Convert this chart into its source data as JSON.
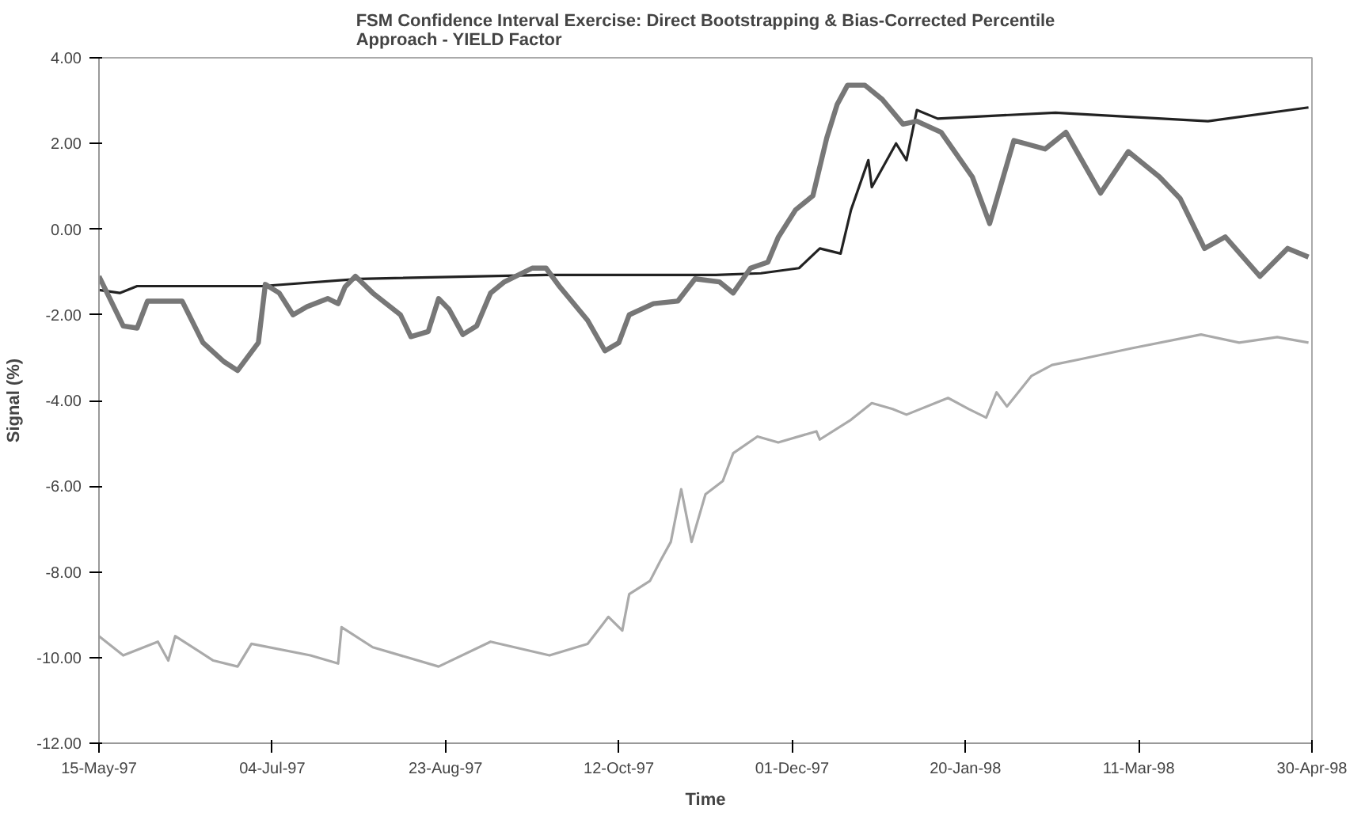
{
  "chart_data": {
    "type": "line",
    "title": "FSM Confidence Interval Exercise: Direct Bootstrapping & Bias-Corrected Percentile\nApproach - YIELD Factor",
    "xlabel": "Time",
    "ylabel": "Signal (%)",
    "xlim": [
      "1997-05-15",
      "1998-04-30"
    ],
    "xticks": [
      {
        "value": "1997-05-15",
        "label": "15-May-97"
      },
      {
        "value": "1997-07-04",
        "label": "04-Jul-97"
      },
      {
        "value": "1997-08-23",
        "label": "23-Aug-97"
      },
      {
        "value": "1997-10-12",
        "label": "12-Oct-97"
      },
      {
        "value": "1997-12-01",
        "label": "01-Dec-97"
      },
      {
        "value": "1998-01-20",
        "label": "20-Jan-98"
      },
      {
        "value": "1998-03-11",
        "label": "11-Mar-98"
      },
      {
        "value": "1998-04-30",
        "label": "30-Apr-98"
      }
    ],
    "ylim": [
      -12,
      4
    ],
    "yticks": [
      {
        "value": 4,
        "label": "4.00"
      },
      {
        "value": 2,
        "label": "2.00"
      },
      {
        "value": 0,
        "label": "0.00"
      },
      {
        "value": -2,
        "label": "-2.00"
      },
      {
        "value": -4,
        "label": "-4.00"
      },
      {
        "value": -6,
        "label": "-6.00"
      },
      {
        "value": -8,
        "label": "-8.00"
      },
      {
        "value": -10,
        "label": "-10.00"
      },
      {
        "value": -12,
        "label": "-12.00"
      }
    ],
    "grid": false,
    "series": [
      {
        "color": "#222222",
        "x": [
          "1997-05-15",
          "1997-05-21",
          "1997-05-26",
          "1997-07-01",
          "1997-07-29",
          "1997-09-21",
          "1997-11-09",
          "1997-11-22",
          "1997-12-03",
          "1997-12-09",
          "1997-12-15",
          "1997-12-18",
          "1997-12-23",
          "1997-12-24",
          "1997-12-31",
          "1998-01-03",
          "1998-01-06",
          "1998-01-12",
          "1998-02-15",
          "1998-03-31",
          "1998-04-29"
        ],
        "values": [
          -1.42,
          -1.49,
          -1.33,
          -1.33,
          -1.16,
          -1.07,
          -1.07,
          -1.03,
          -0.91,
          -0.45,
          -0.57,
          0.45,
          1.61,
          0.98,
          2.0,
          1.61,
          2.78,
          2.58,
          2.72,
          2.52,
          2.84
        ]
      },
      {
        "color": "#777777",
        "x": [
          "1997-05-15",
          "1997-05-22",
          "1997-05-26",
          "1997-05-29",
          "1997-06-08",
          "1997-06-14",
          "1997-06-20",
          "1997-06-24",
          "1997-06-30",
          "1997-07-02",
          "1997-07-06",
          "1997-07-10",
          "1997-07-14",
          "1997-07-20",
          "1997-07-23",
          "1997-07-25",
          "1997-07-28",
          "1997-08-02",
          "1997-08-10",
          "1997-08-13",
          "1997-08-18",
          "1997-08-21",
          "1997-08-24",
          "1997-08-28",
          "1997-09-01",
          "1997-09-05",
          "1997-09-09",
          "1997-09-17",
          "1997-09-21",
          "1997-09-25",
          "1997-10-03",
          "1997-10-08",
          "1997-10-12",
          "1997-10-15",
          "1997-10-22",
          "1997-10-29",
          "1997-11-03",
          "1997-11-10",
          "1997-11-14",
          "1997-11-19",
          "1997-11-24",
          "1997-11-27",
          "1997-12-02",
          "1997-12-07",
          "1997-12-11",
          "1997-12-14",
          "1997-12-17",
          "1997-12-22",
          "1997-12-27",
          "1998-01-02",
          "1998-01-06",
          "1998-01-13",
          "1998-01-22",
          "1998-01-27",
          "1998-02-03",
          "1998-02-12",
          "1998-02-18",
          "1998-02-28",
          "1998-03-08",
          "1998-03-17",
          "1998-03-23",
          "1998-03-30",
          "1998-04-05",
          "1998-04-15",
          "1998-04-23",
          "1998-04-29"
        ],
        "values": [
          -1.1,
          -2.26,
          -2.31,
          -1.68,
          -1.68,
          -2.65,
          -3.09,
          -3.3,
          -2.65,
          -1.29,
          -1.49,
          -2.0,
          -1.81,
          -1.62,
          -1.74,
          -1.35,
          -1.1,
          -1.49,
          -2.0,
          -2.51,
          -2.39,
          -1.62,
          -1.87,
          -2.46,
          -2.26,
          -1.49,
          -1.23,
          -0.91,
          -0.91,
          -1.35,
          -2.13,
          -2.84,
          -2.65,
          -2.0,
          -1.74,
          -1.68,
          -1.16,
          -1.23,
          -1.49,
          -0.91,
          -0.77,
          -0.19,
          0.45,
          0.78,
          2.13,
          2.91,
          3.36,
          3.36,
          3.03,
          2.45,
          2.52,
          2.26,
          1.22,
          0.13,
          2.07,
          1.87,
          2.26,
          0.84,
          1.81,
          1.22,
          0.71,
          -0.45,
          -0.18,
          -1.1,
          -0.45,
          -0.65
        ]
      },
      {
        "color": "#aaaaaa",
        "x": [
          "1997-05-15",
          "1997-05-22",
          "1997-06-01",
          "1997-06-04",
          "1997-06-06",
          "1997-06-17",
          "1997-06-24",
          "1997-06-28",
          "1997-07-15",
          "1997-07-23",
          "1997-07-24",
          "1997-08-02",
          "1997-08-21",
          "1997-09-05",
          "1997-09-22",
          "1997-10-03",
          "1997-10-09",
          "1997-10-13",
          "1997-10-15",
          "1997-10-21",
          "1997-10-24",
          "1997-10-27",
          "1997-10-30",
          "1997-11-02",
          "1997-11-06",
          "1997-11-11",
          "1997-11-14",
          "1997-11-21",
          "1997-11-27",
          "1997-12-08",
          "1997-12-09",
          "1997-12-18",
          "1997-12-24",
          "1997-12-30",
          "1998-01-03",
          "1998-01-15",
          "1998-01-21",
          "1998-01-26",
          "1998-01-29",
          "1998-02-01",
          "1998-02-08",
          "1998-02-14",
          "1998-02-22",
          "1998-03-09",
          "1998-03-29",
          "1998-04-09",
          "1998-04-20",
          "1998-04-29"
        ],
        "values": [
          -9.5,
          -9.95,
          -9.63,
          -10.07,
          -9.5,
          -10.07,
          -10.21,
          -9.68,
          -9.95,
          -10.14,
          -9.29,
          -9.76,
          -10.21,
          -9.63,
          -9.95,
          -9.68,
          -9.05,
          -9.37,
          -8.52,
          -8.21,
          -7.74,
          -7.3,
          -6.07,
          -7.3,
          -6.19,
          -5.88,
          -5.23,
          -4.84,
          -4.98,
          -4.72,
          -4.91,
          -4.45,
          -4.06,
          -4.2,
          -4.33,
          -3.94,
          -4.2,
          -4.4,
          -3.81,
          -4.14,
          -3.43,
          -3.17,
          -3.04,
          -2.78,
          -2.46,
          -2.65,
          -2.52,
          -2.65
        ]
      }
    ]
  }
}
